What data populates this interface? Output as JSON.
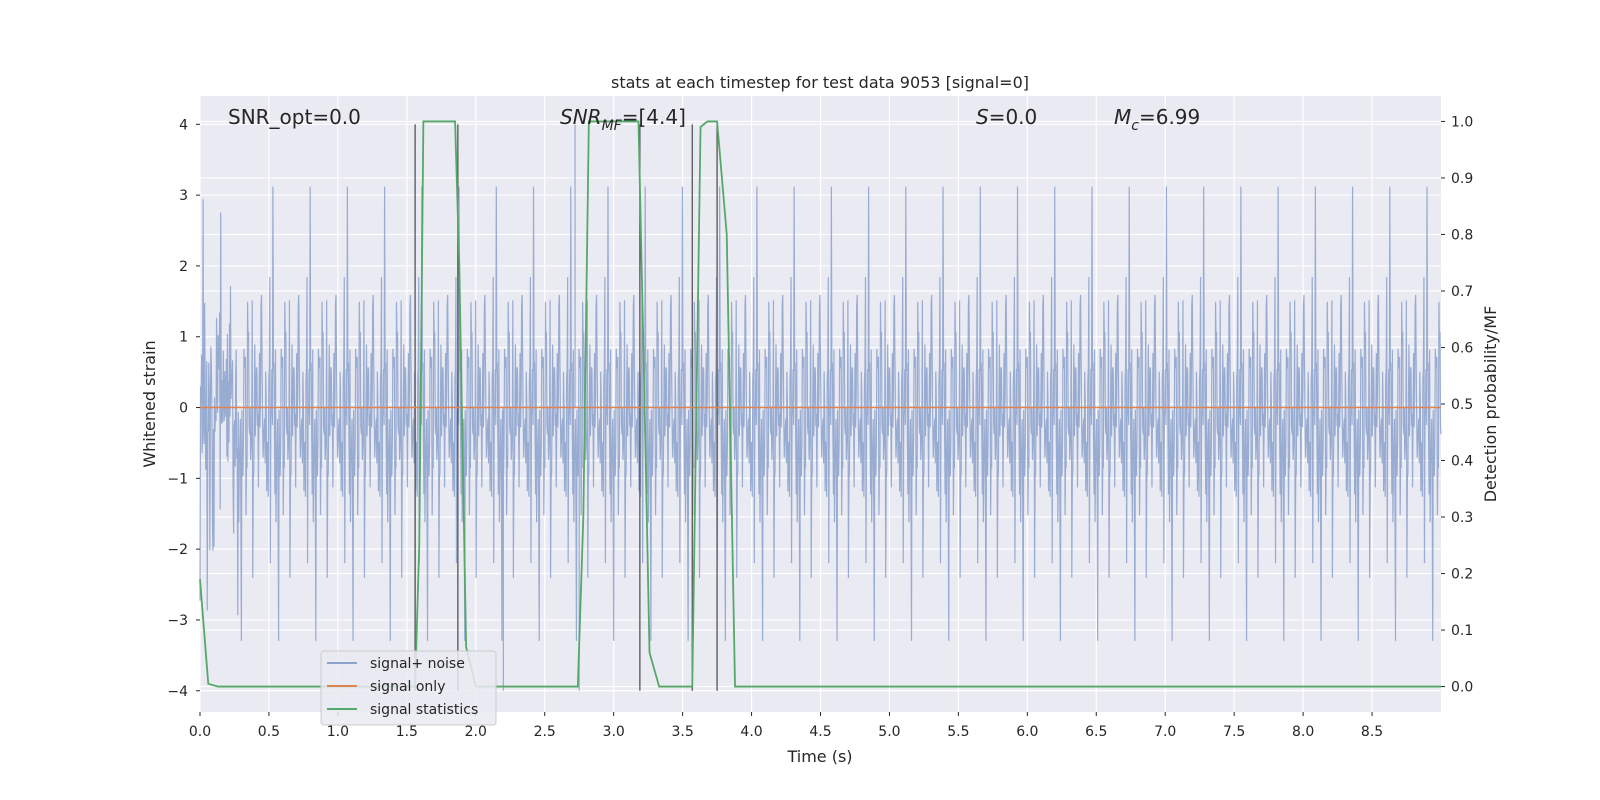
{
  "chart_data": {
    "type": "line",
    "title": "stats at each timestep for test data 9053 [signal=0]",
    "xlabel": "Time (s)",
    "ylabel": "Whitened strain",
    "y2label": "Detection probability/MF",
    "xlim": [
      0.0,
      9.0
    ],
    "ylim": [
      -4.3,
      4.4
    ],
    "y2lim": [
      -0.045,
      1.045
    ],
    "xticks": [
      "0.0",
      "0.5",
      "1.0",
      "1.5",
      "2.0",
      "2.5",
      "3.0",
      "3.5",
      "4.0",
      "4.5",
      "5.0",
      "5.5",
      "6.0",
      "6.5",
      "7.0",
      "7.5",
      "8.0",
      "8.5"
    ],
    "yticks": [
      "4",
      "3",
      "2",
      "1",
      "0",
      "−1",
      "−2",
      "−3",
      "−4"
    ],
    "y2ticks": [
      "1.0",
      "0.9",
      "0.8",
      "0.7",
      "0.6",
      "0.5",
      "0.4",
      "0.3",
      "0.2",
      "0.1",
      "0.0"
    ],
    "grid": true,
    "legend": "lower-left",
    "annotations": {
      "snr_opt": "SNR_opt=0.0",
      "snr_mf_main": "SNR",
      "snr_mf_sub": "MF",
      "snr_mf_rest": "=[4.4]",
      "s_main": "S",
      "s_rest": "=0.0",
      "mc_main": "M",
      "mc_sub": "c",
      "mc_rest": "=6.99"
    },
    "series": [
      {
        "name": "signal+ noise",
        "color": "#8fa4cd",
        "noise_band": {
          "rms": 1.0,
          "typical_peak": 2.5,
          "max": 4.0,
          "min": -4.0
        },
        "spikes": [
          [
            1.56,
            -4.0
          ],
          [
            2.2,
            -4.0
          ],
          [
            2.72,
            4.0
          ],
          [
            2.75,
            -4.0
          ]
        ]
      },
      {
        "name": "signal only",
        "color": "#dd8452",
        "x": [
          0.0,
          9.0
        ],
        "values": [
          0.0,
          0.0
        ]
      },
      {
        "name": "signal statistics",
        "color": "#55a868",
        "axis": "right",
        "x": [
          0.0,
          0.06,
          0.13,
          1.56,
          1.59,
          1.62,
          1.65,
          1.85,
          1.88,
          1.93,
          2.0,
          2.74,
          2.78,
          2.82,
          2.86,
          3.18,
          3.22,
          3.26,
          3.33,
          3.5,
          3.57,
          3.63,
          3.68,
          3.75,
          3.82,
          3.88,
          9.0
        ],
        "values": [
          0.19,
          0.005,
          0.0,
          0.0,
          0.25,
          1.0,
          1.0,
          1.0,
          0.75,
          0.07,
          0.0,
          0.0,
          0.3,
          1.0,
          1.0,
          1.0,
          0.55,
          0.06,
          0.0,
          0.0,
          0.0,
          0.99,
          1.0,
          1.0,
          0.8,
          0.0,
          0.0
        ]
      }
    ],
    "vlines": [
      {
        "x": 1.56,
        "y_from": -4.0,
        "y_to": 4.0
      },
      {
        "x": 1.87,
        "y_from": -4.0,
        "y_to": 4.0
      },
      {
        "x": 3.19,
        "y_from": -4.0,
        "y_to": 4.0
      },
      {
        "x": 3.57,
        "y_from": -4.0,
        "y_to": 4.0
      },
      {
        "x": 3.75,
        "y_from": -4.0,
        "y_to": 4.0
      }
    ]
  }
}
